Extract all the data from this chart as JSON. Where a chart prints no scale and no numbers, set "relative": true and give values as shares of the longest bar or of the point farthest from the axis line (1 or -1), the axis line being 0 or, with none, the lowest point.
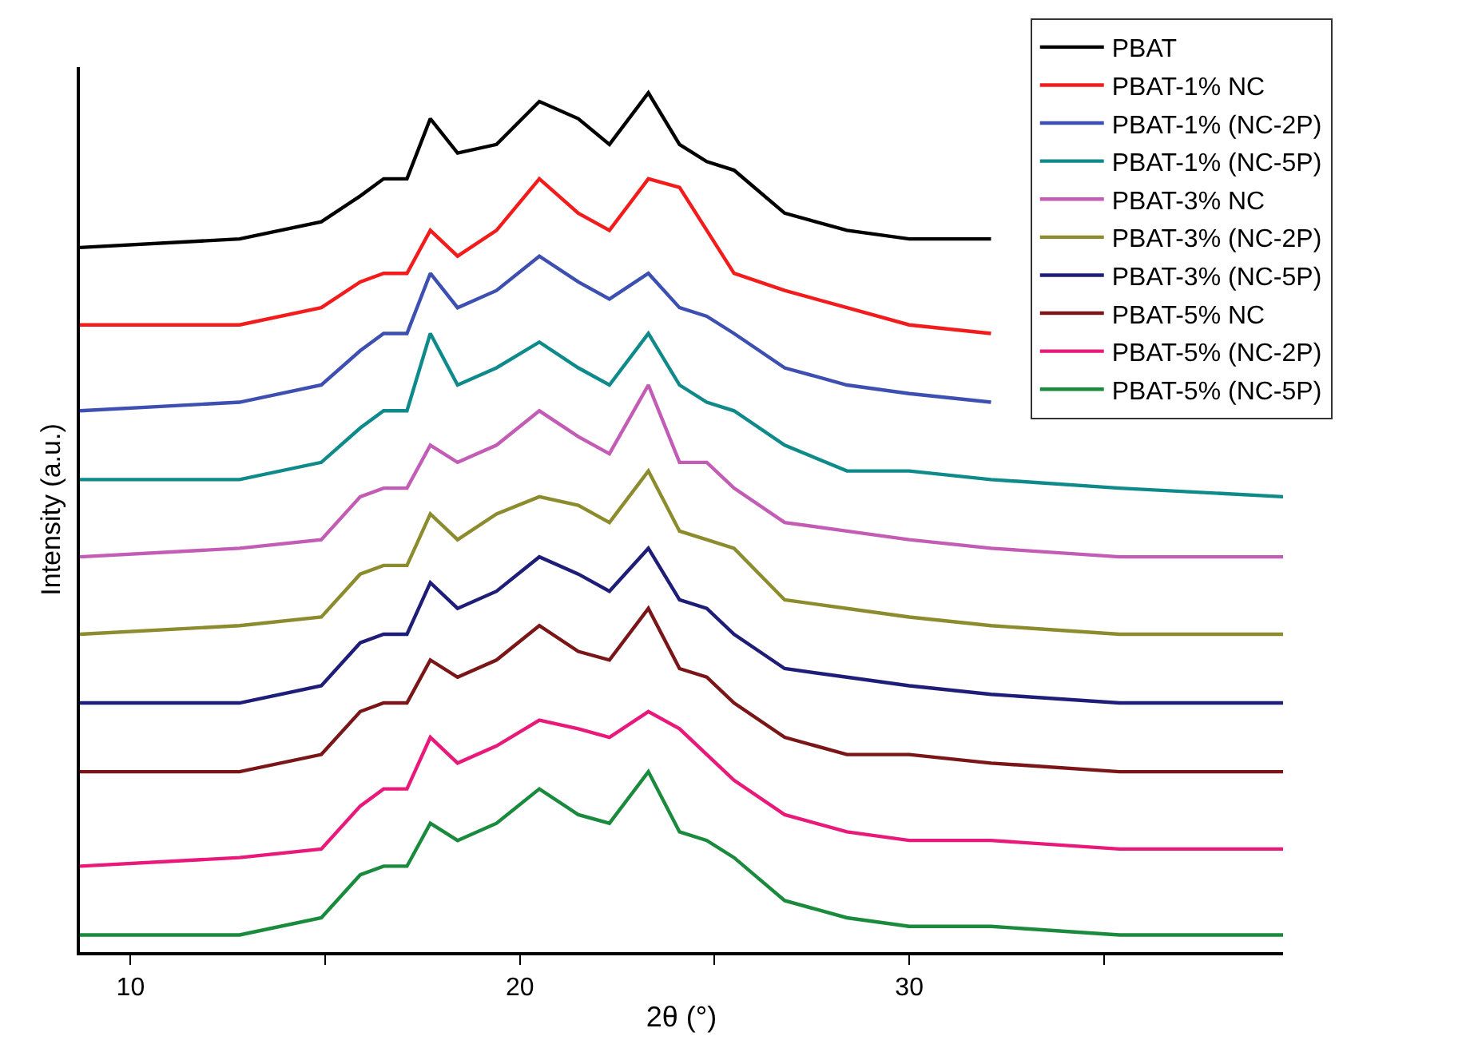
{
  "chart_data": {
    "type": "line",
    "relative": true,
    "xlabel": "2θ (°)",
    "ylabel": "Intensity (a.u.)",
    "xlim": [
      8.7,
      39.6
    ],
    "xticks": [
      10,
      {
        "value": 15,
        "label": null
      },
      20,
      {
        "value": 25,
        "label": null
      },
      30,
      {
        "value": 35,
        "label": null
      }
    ],
    "legend": "top right",
    "marker": "none",
    "line_style": "solid",
    "x": [
      8.7,
      12.8,
      14.9,
      15.9,
      16.5,
      17.1,
      17.7,
      18.4,
      19.4,
      20.5,
      21.5,
      22.3,
      23.3,
      24.1,
      24.8,
      25.5,
      26.8,
      28.4,
      30.0,
      32.1,
      35.4,
      39.6
    ],
    "series": [
      {
        "name": "PBAT",
        "color": "#000000",
        "values": [
          0.82,
          0.83,
          0.85,
          0.88,
          0.9,
          0.9,
          0.97,
          0.93,
          0.94,
          0.99,
          0.97,
          0.94,
          1,
          0.94,
          0.92,
          0.91,
          0.86,
          0.84,
          0.83,
          0.83,
          null,
          null
        ]
      },
      {
        "name": "PBAT-1% NC",
        "color": "#f21c1c",
        "values": [
          0.73,
          0.73,
          0.75,
          0.78,
          0.79,
          0.79,
          0.84,
          0.81,
          0.84,
          0.9,
          0.86,
          0.84,
          0.9,
          0.89,
          0.84,
          0.79,
          0.77,
          0.75,
          0.73,
          0.72,
          null,
          null
        ]
      },
      {
        "name": "PBAT-1% (NC-2P)",
        "color": "#3d4fb0",
        "values": [
          0.63,
          0.64,
          0.66,
          0.7,
          0.72,
          0.72,
          0.79,
          0.75,
          0.77,
          0.81,
          0.78,
          0.76,
          0.79,
          0.75,
          0.74,
          0.72,
          0.68,
          0.66,
          0.65,
          0.64,
          null,
          null
        ]
      },
      {
        "name": "PBAT-1% (NC-5P)",
        "color": "#0e8a8a",
        "values": [
          0.55,
          0.55,
          0.57,
          0.61,
          0.63,
          0.63,
          0.72,
          0.66,
          0.68,
          0.71,
          0.68,
          0.66,
          0.72,
          0.66,
          0.64,
          0.63,
          0.59,
          0.56,
          0.56,
          0.55,
          0.54,
          0.53
        ]
      },
      {
        "name": "PBAT-3% NC",
        "color": "#c25cb5",
        "values": [
          0.46,
          0.47,
          0.48,
          0.53,
          0.54,
          0.54,
          0.59,
          0.57,
          0.59,
          0.63,
          0.6,
          0.58,
          0.66,
          0.57,
          0.57,
          0.54,
          0.5,
          0.49,
          0.48,
          0.47,
          0.46,
          0.46
        ]
      },
      {
        "name": "PBAT-3% (NC-2P)",
        "color": "#8c8c2e",
        "values": [
          0.37,
          0.38,
          0.39,
          0.44,
          0.45,
          0.45,
          0.51,
          0.48,
          0.51,
          0.53,
          0.52,
          0.5,
          0.56,
          0.49,
          0.48,
          0.47,
          0.41,
          0.4,
          0.39,
          0.38,
          0.37,
          0.37
        ]
      },
      {
        "name": "PBAT-3% (NC-5P)",
        "color": "#1e1e78",
        "values": [
          0.29,
          0.29,
          0.31,
          0.36,
          0.37,
          0.37,
          0.43,
          0.4,
          0.42,
          0.46,
          0.44,
          0.42,
          0.47,
          0.41,
          0.4,
          0.37,
          0.33,
          0.32,
          0.31,
          0.3,
          0.29,
          0.29
        ]
      },
      {
        "name": "PBAT-5% NC",
        "color": "#7a1518",
        "values": [
          0.21,
          0.21,
          0.23,
          0.28,
          0.29,
          0.29,
          0.34,
          0.32,
          0.34,
          0.38,
          0.35,
          0.34,
          0.4,
          0.33,
          0.32,
          0.29,
          0.25,
          0.23,
          0.23,
          0.22,
          0.21,
          0.21
        ]
      },
      {
        "name": "PBAT-5% (NC-2P)",
        "color": "#e8197a",
        "values": [
          0.1,
          0.11,
          0.12,
          0.17,
          0.19,
          0.19,
          0.25,
          0.22,
          0.24,
          0.27,
          0.26,
          0.25,
          0.28,
          0.26,
          0.23,
          0.2,
          0.16,
          0.14,
          0.13,
          0.13,
          0.12,
          0.12
        ]
      },
      {
        "name": "PBAT-5% (NC-5P)",
        "color": "#1a8a3c",
        "values": [
          0.02,
          0.02,
          0.04,
          0.09,
          0.1,
          0.1,
          0.15,
          0.13,
          0.15,
          0.19,
          0.16,
          0.15,
          0.21,
          0.14,
          0.13,
          0.11,
          0.06,
          0.04,
          0.03,
          0.03,
          0.02,
          0.02
        ]
      }
    ]
  }
}
